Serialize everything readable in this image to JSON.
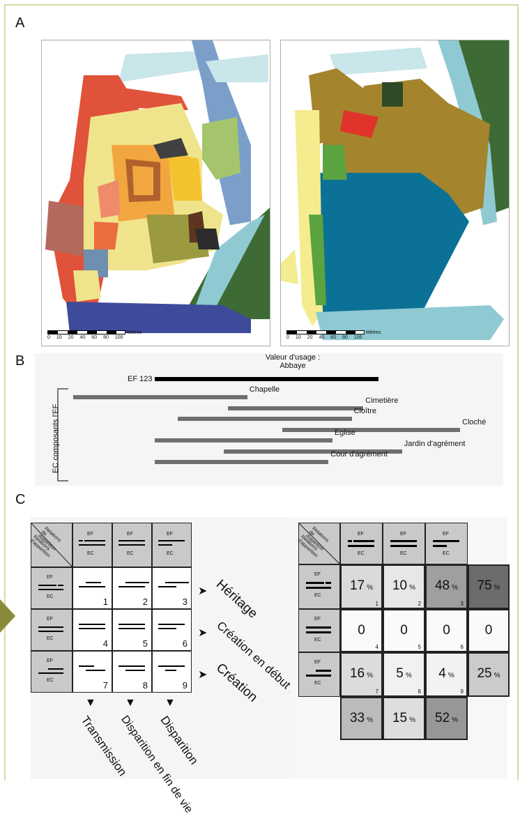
{
  "panels": {
    "a": "A",
    "b": "B",
    "c": "C"
  },
  "maps": {
    "scale_ticks": [
      "0",
      "10",
      "20",
      "40",
      "60",
      "80",
      "100"
    ],
    "scale_unit": "Mètres"
  },
  "timeline": {
    "value_title": "Valeur d'usage :",
    "value_name": "Abbaye",
    "ef_label": "EF 123",
    "axis_label": "EC composants l'EF",
    "bars": [
      {
        "name": "Chapelle",
        "start": 0.0,
        "end": 0.45
      },
      {
        "name": "Cimetière",
        "start": 0.4,
        "end": 0.75
      },
      {
        "name": "Cloître",
        "start": 0.27,
        "end": 0.72
      },
      {
        "name": "Cloché",
        "start": 0.54,
        "end": 1.0
      },
      {
        "name": "Eglise",
        "start": 0.21,
        "end": 0.67
      },
      {
        "name": "Jardin d'agrément",
        "start": 0.39,
        "end": 0.85
      },
      {
        "name": "Cour d'agrément",
        "start": 0.21,
        "end": 0.66
      }
    ],
    "ef_span": {
      "start": 0.21,
      "end": 0.79
    }
  },
  "matrix": {
    "corner_top": [
      "Relations",
      "de disparition"
    ],
    "corner_bottom": [
      "Relations",
      "d'apparition"
    ],
    "ef": "EF",
    "ec": "EC",
    "cells": [
      "1",
      "2",
      "3",
      "4",
      "5",
      "6",
      "7",
      "8",
      "9"
    ],
    "rows": [
      "Héritage",
      "Création en début de vie",
      "Création"
    ],
    "cols": [
      "Transmission",
      "Disparition en fin de vie",
      "Disparition"
    ]
  },
  "stats": {
    "cells": [
      {
        "value": "17",
        "unit": "%",
        "n": "1"
      },
      {
        "value": "10",
        "unit": "%",
        "n": "2"
      },
      {
        "value": "48",
        "unit": "%",
        "n": "3"
      },
      {
        "value": "0",
        "unit": "",
        "n": "4"
      },
      {
        "value": "0",
        "unit": "",
        "n": "5"
      },
      {
        "value": "0",
        "unit": "",
        "n": "6"
      },
      {
        "value": "16",
        "unit": "%",
        "n": "7"
      },
      {
        "value": "5",
        "unit": "%",
        "n": "8"
      },
      {
        "value": "4",
        "unit": "%",
        "n": "9"
      }
    ],
    "row_totals": [
      {
        "value": "75",
        "unit": "%"
      },
      {
        "value": "0",
        "unit": ""
      },
      {
        "value": "25",
        "unit": "%"
      }
    ],
    "col_totals": [
      {
        "value": "33",
        "unit": "%"
      },
      {
        "value": "15",
        "unit": "%"
      },
      {
        "value": "52",
        "unit": "%"
      }
    ]
  }
}
